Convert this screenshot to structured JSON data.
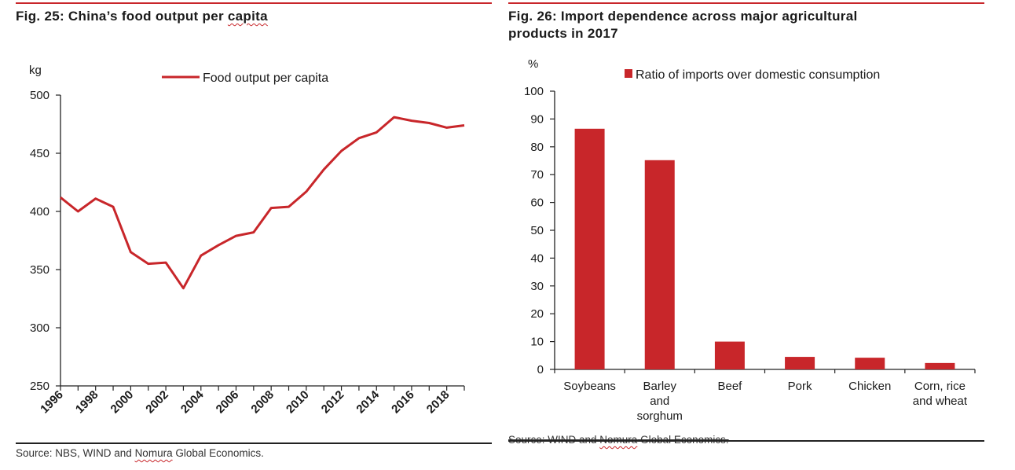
{
  "left": {
    "title": "Fig. 25: China’s food output per capita",
    "title_plain": "Fig. 25: China’s food output per ",
    "title_word": "capita",
    "source_prefix": "Source: NBS, WIND and ",
    "source_word": "Nomura",
    "source_suffix": " Global Economics."
  },
  "right": {
    "title_line1": "Fig. 26: Import dependence across major agricultural",
    "title_line2": "products in 2017",
    "source_prefix": "Source: WIND and ",
    "source_word": "Nomura",
    "source_suffix": " Global Economics."
  },
  "colors": {
    "accent": "#c8262a",
    "axis": "#222222"
  },
  "chart_data": [
    {
      "type": "line",
      "title": "Fig. 25: China’s food output per capita",
      "ylabel": "kg",
      "xlabel": "",
      "ylim": [
        250,
        500
      ],
      "yticks": [
        250,
        300,
        350,
        400,
        450,
        500
      ],
      "xticks": [
        "1996",
        "1998",
        "2000",
        "2002",
        "2004",
        "2006",
        "2008",
        "2010",
        "2012",
        "2014",
        "2016",
        "2018"
      ],
      "x": [
        1996,
        1997,
        1998,
        1999,
        2000,
        2001,
        2002,
        2003,
        2004,
        2005,
        2006,
        2007,
        2008,
        2009,
        2010,
        2011,
        2012,
        2013,
        2014,
        2015,
        2016,
        2017,
        2018,
        2019
      ],
      "series": [
        {
          "name": "Food output per capita",
          "values": [
            412,
            400,
            411,
            404,
            365,
            355,
            356,
            334,
            362,
            371,
            379,
            382,
            403,
            404,
            417,
            436,
            452,
            463,
            468,
            481,
            478,
            476,
            472,
            474
          ]
        }
      ],
      "legend": "top-center",
      "grid": false
    },
    {
      "type": "bar",
      "title": "Fig. 26: Import dependence across major agricultural products in 2017",
      "ylabel": "%",
      "xlabel": "",
      "ylim": [
        0,
        100
      ],
      "yticks": [
        0,
        10,
        20,
        30,
        40,
        50,
        60,
        70,
        80,
        90,
        100
      ],
      "categories": [
        [
          "Soybeans"
        ],
        [
          "Barley",
          "and",
          "sorghum"
        ],
        [
          "Beef"
        ],
        [
          "Pork"
        ],
        [
          "Chicken"
        ],
        [
          "Corn, rice",
          "and wheat"
        ]
      ],
      "series": [
        {
          "name": "Ratio of imports over domestic consumption",
          "values": [
            86.5,
            75.2,
            10.0,
            4.5,
            4.2,
            2.3
          ]
        }
      ],
      "legend": "top-center",
      "grid": false
    }
  ]
}
